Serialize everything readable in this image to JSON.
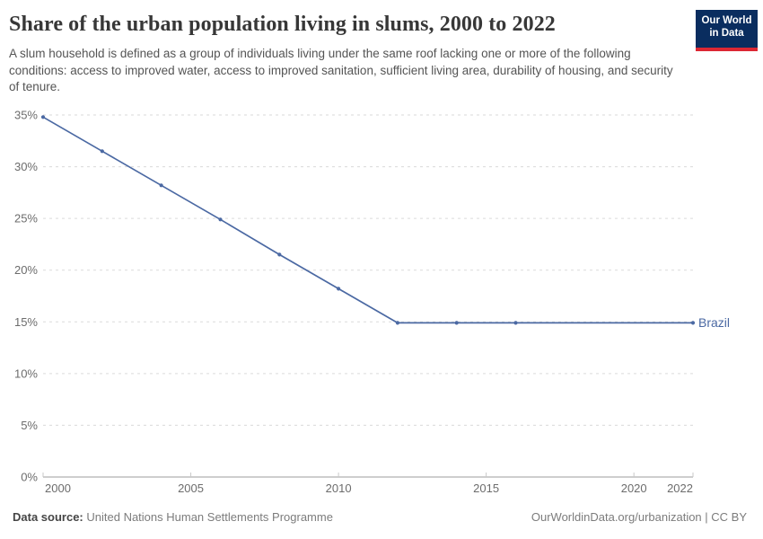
{
  "header": {
    "title": "Share of the urban population living in slums, 2000 to 2022",
    "subtitle": "A slum household is defined as a group of individuals living under the same roof lacking one or more of the following conditions: access to improved water, access to improved sanitation, sufficient living area, durability of housing, and security of tenure.",
    "logo": {
      "line1": "Our World",
      "line2": "in Data",
      "bg_color": "#0a2d5f",
      "accent_color": "#dc2733"
    }
  },
  "chart_data": {
    "type": "line",
    "title": "Share of the urban population living in slums, 2000 to 2022",
    "series": [
      {
        "name": "Brazil",
        "color": "#4b69a3",
        "x": [
          2000,
          2002,
          2004,
          2006,
          2008,
          2010,
          2012,
          2014,
          2016,
          2022
        ],
        "values": [
          34.8,
          31.5,
          28.2,
          24.9,
          21.5,
          18.2,
          14.9,
          14.9,
          14.9,
          14.9
        ]
      }
    ],
    "xlabel": "",
    "ylabel": "",
    "xlim": [
      2000,
      2022
    ],
    "ylim": [
      0,
      35
    ],
    "x_tick_labels": [
      "2000",
      "2005",
      "2010",
      "2015",
      "2020",
      "2022"
    ],
    "y_tick_labels": [
      "0%",
      "5%",
      "10%",
      "15%",
      "20%",
      "25%",
      "30%",
      "35%"
    ],
    "grid": "horizontal-dashed",
    "legend": "line-end-label",
    "colors": {
      "gridline": "#dadada",
      "axis": "#9c9c9c",
      "tick_mark": "#c9c9c9",
      "tick_text": "#6c6c6c"
    }
  },
  "footer": {
    "data_source_label": "Data source:",
    "data_source_value": "United Nations Human Settlements Programme",
    "attribution": "OurWorldinData.org/urbanization | CC BY"
  }
}
